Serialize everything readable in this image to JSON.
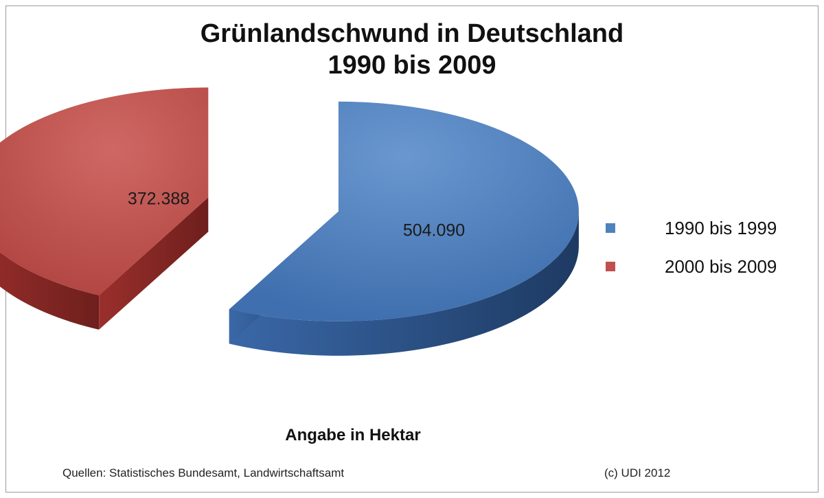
{
  "chart_data": {
    "type": "pie",
    "title": "Grünlandschwund in Deutschland",
    "subtitle": "1990 bis 2009",
    "categories": [
      "1990 bis 1999",
      "2000 bis 2009"
    ],
    "values": [
      504090,
      372388
    ],
    "value_labels": [
      "504.090",
      "372.388"
    ],
    "colors": [
      "#4f81bd",
      "#c0504d"
    ],
    "legend_position": "right",
    "style": "3d-exploded",
    "unit_note": "Angabe in Hektar"
  },
  "footer": {
    "source": "Quellen: Statistisches Bundesamt, Landwirtschaftsamt",
    "copyright": "(c) UDI 2012"
  }
}
